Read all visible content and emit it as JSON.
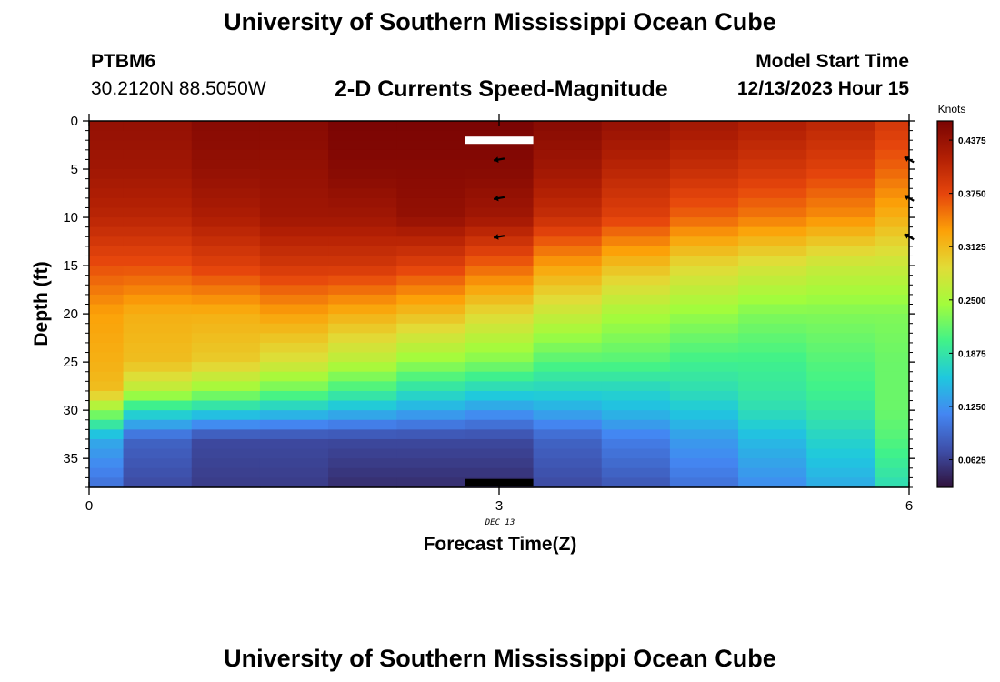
{
  "header": {
    "title": "University of Southern Mississippi Ocean Cube",
    "station": "PTBM6",
    "coords": "30.2120N  88.5050W",
    "subtitle": "2-D Currents Speed-Magnitude",
    "model_start_label": "Model Start Time",
    "model_start_value": "12/13/2023 Hour 15"
  },
  "footer": {
    "title": "University of Southern Mississippi Ocean Cube"
  },
  "chart_data": {
    "type": "heatmap",
    "title": "2-D Currents Speed-Magnitude",
    "xlabel": "Forecast Time(Z)",
    "ylabel": "Depth (ft)",
    "xlim": [
      0,
      6
    ],
    "ylim": [
      38,
      0
    ],
    "x_ticks": [
      0,
      3,
      6
    ],
    "x_tick_labels": [
      "0",
      "3",
      "6"
    ],
    "x_date_label": "DEC 13",
    "y_ticks": [
      0,
      5,
      10,
      15,
      20,
      25,
      30,
      35
    ],
    "y_tick_labels": [
      "0",
      "5",
      "10",
      "15",
      "20",
      "25",
      "30",
      "35"
    ],
    "colorbar": {
      "label": "Knots",
      "range": [
        0.03,
        0.46
      ],
      "ticks": [
        0.0625,
        0.125,
        0.1875,
        0.25,
        0.3125,
        0.375,
        0.4375
      ],
      "tick_labels": [
        "0.0625",
        "0.1250",
        "0.1875",
        "0.2500",
        "0.3125",
        "0.3750",
        "0.4375"
      ],
      "stops": [
        "#30123b",
        "#3e4ea8",
        "#4486f2",
        "#1fc8de",
        "#41f289",
        "#a2fc3c",
        "#e1dc37",
        "#fca108",
        "#e6460c",
        "#b11f04",
        "#7a0403"
      ]
    },
    "time_columns": [
      0,
      0.5,
      1,
      1.5,
      2,
      2.5,
      3,
      3.5,
      4,
      4.5,
      5,
      5.5,
      6
    ],
    "depth_knots": [
      0,
      5,
      10,
      15,
      20,
      25,
      28,
      30,
      33,
      38
    ],
    "speed_profiles_knots": [
      [
        0.44,
        0.43,
        0.41,
        0.37,
        0.33,
        0.32,
        0.31,
        0.24,
        0.14,
        0.1
      ],
      [
        0.44,
        0.43,
        0.41,
        0.37,
        0.32,
        0.31,
        0.26,
        0.18,
        0.09,
        0.07
      ],
      [
        0.45,
        0.44,
        0.42,
        0.38,
        0.32,
        0.3,
        0.24,
        0.17,
        0.07,
        0.06
      ],
      [
        0.45,
        0.44,
        0.43,
        0.39,
        0.33,
        0.28,
        0.22,
        0.16,
        0.07,
        0.06
      ],
      [
        0.46,
        0.45,
        0.43,
        0.39,
        0.32,
        0.26,
        0.2,
        0.15,
        0.07,
        0.05
      ],
      [
        0.46,
        0.45,
        0.44,
        0.38,
        0.31,
        0.24,
        0.18,
        0.14,
        0.07,
        0.05
      ],
      [
        0.46,
        0.45,
        0.43,
        0.36,
        0.29,
        0.23,
        0.17,
        0.13,
        0.07,
        0.05
      ],
      [
        0.45,
        0.43,
        0.4,
        0.33,
        0.27,
        0.21,
        0.17,
        0.14,
        0.09,
        0.07
      ],
      [
        0.44,
        0.41,
        0.38,
        0.31,
        0.25,
        0.21,
        0.17,
        0.15,
        0.11,
        0.08
      ],
      [
        0.43,
        0.4,
        0.36,
        0.29,
        0.24,
        0.2,
        0.18,
        0.16,
        0.13,
        0.1
      ],
      [
        0.42,
        0.39,
        0.35,
        0.28,
        0.23,
        0.2,
        0.19,
        0.18,
        0.15,
        0.12
      ],
      [
        0.41,
        0.38,
        0.34,
        0.27,
        0.23,
        0.21,
        0.2,
        0.19,
        0.17,
        0.14
      ],
      [
        0.39,
        0.36,
        0.32,
        0.27,
        0.23,
        0.22,
        0.22,
        0.22,
        0.21,
        0.18
      ]
    ],
    "velocity_arrows": [
      {
        "time": 3,
        "depth": 4,
        "direction": "west"
      },
      {
        "time": 3,
        "depth": 8,
        "direction": "west"
      },
      {
        "time": 3,
        "depth": 12,
        "direction": "west"
      },
      {
        "time": 6,
        "depth": 4,
        "direction": "northwest"
      },
      {
        "time": 6,
        "depth": 8,
        "direction": "northwest"
      },
      {
        "time": 6,
        "depth": 12,
        "direction": "northwest"
      }
    ],
    "markers": [
      {
        "time": 3,
        "depth": 2,
        "color": "#ffffff"
      },
      {
        "time": 3,
        "depth": 37.5,
        "color": "#000000"
      }
    ],
    "grid": false
  }
}
